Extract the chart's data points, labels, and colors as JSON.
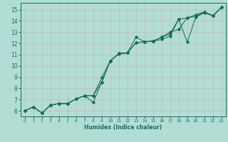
{
  "xlabel": "Humidex (Indice chaleur)",
  "xlim": [
    -0.5,
    23.5
  ],
  "ylim": [
    5.5,
    15.6
  ],
  "xticks": [
    0,
    1,
    2,
    3,
    4,
    5,
    6,
    7,
    8,
    9,
    10,
    11,
    12,
    13,
    14,
    15,
    16,
    17,
    18,
    19,
    20,
    21,
    22,
    23
  ],
  "yticks": [
    6,
    7,
    8,
    9,
    10,
    11,
    12,
    13,
    14,
    15
  ],
  "background_color": "#b2ddd4",
  "grid_color": "#d4ebe6",
  "line_color": "#1a6b5a",
  "line1_x": [
    0,
    1,
    2,
    3,
    4,
    5,
    6,
    7,
    8,
    9,
    10,
    11,
    12,
    13,
    14,
    15,
    16,
    17,
    18,
    19,
    20,
    21,
    22,
    23
  ],
  "line1_y": [
    6.0,
    6.35,
    5.8,
    6.5,
    6.65,
    6.65,
    7.05,
    7.35,
    6.75,
    8.55,
    10.45,
    11.05,
    11.15,
    12.55,
    12.15,
    12.2,
    12.35,
    12.65,
    14.15,
    12.1,
    14.35,
    14.7,
    14.45,
    15.2
  ],
  "line2_x": [
    0,
    1,
    2,
    3,
    4,
    5,
    6,
    7,
    8,
    9,
    10,
    11,
    12,
    13,
    14,
    15,
    16,
    17,
    18,
    19,
    20,
    21,
    22,
    23
  ],
  "line2_y": [
    6.0,
    6.35,
    5.8,
    6.5,
    6.65,
    6.65,
    7.05,
    7.35,
    7.35,
    8.95,
    10.45,
    11.1,
    11.15,
    12.05,
    12.15,
    12.2,
    12.55,
    12.85,
    14.15,
    14.25,
    14.4,
    14.8,
    14.45,
    15.2
  ],
  "line3_x": [
    0,
    1,
    2,
    3,
    4,
    5,
    6,
    7,
    8,
    9,
    10,
    11,
    12,
    13,
    14,
    15,
    16,
    17,
    18,
    19,
    20,
    21,
    22,
    23
  ],
  "line3_y": [
    6.0,
    6.35,
    5.8,
    6.5,
    6.65,
    6.65,
    7.05,
    7.35,
    7.35,
    8.55,
    10.45,
    11.1,
    11.15,
    12.05,
    12.15,
    12.2,
    12.55,
    13.0,
    13.25,
    14.25,
    14.55,
    14.8,
    14.45,
    15.2
  ]
}
